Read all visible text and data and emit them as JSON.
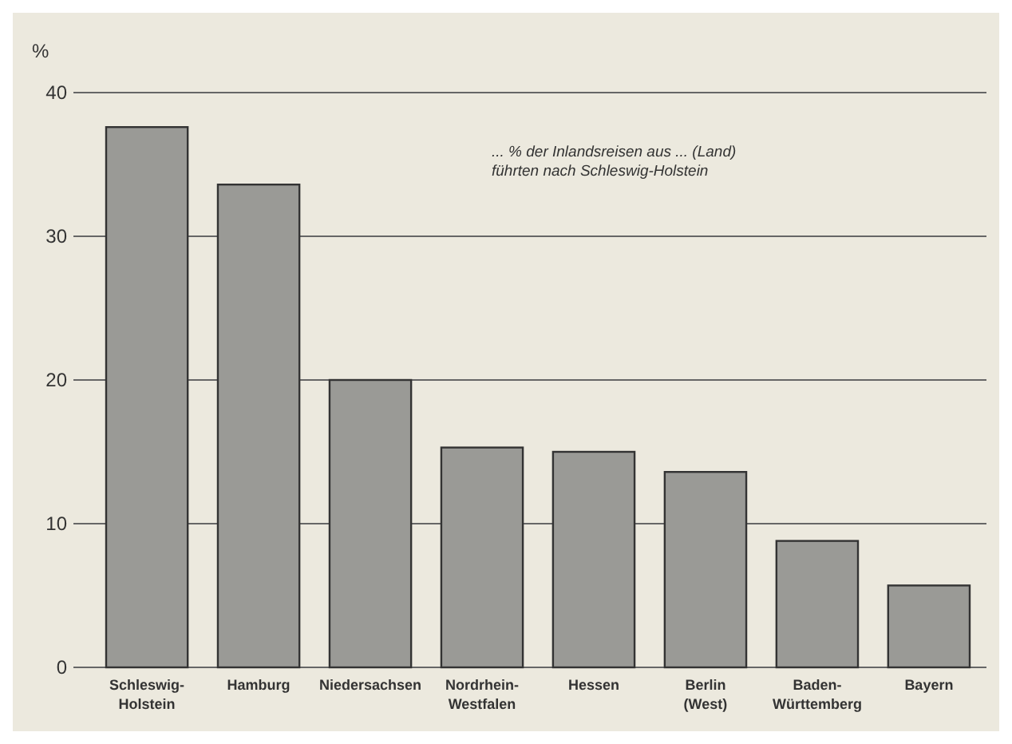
{
  "chart_data": {
    "type": "bar",
    "ylabel": "%",
    "annotations": [
      "... % der Inlandsreisen aus ... (Land) führten nach Schleswig-Holstein"
    ],
    "categories": [
      "Schleswig-Holstein",
      "Hamburg",
      "Niedersachsen",
      "Nordrhein-Westfalen",
      "Hessen",
      "Berlin (West)",
      "Baden-Württemberg",
      "Bayern"
    ],
    "values": [
      37.6,
      33.6,
      20,
      15.3,
      15,
      13.6,
      8.8,
      5.7
    ],
    "color": "#9a9a96",
    "ylim": [
      0,
      40
    ],
    "yticks": [
      0,
      10,
      20,
      30,
      40
    ],
    "grid": "y"
  }
}
